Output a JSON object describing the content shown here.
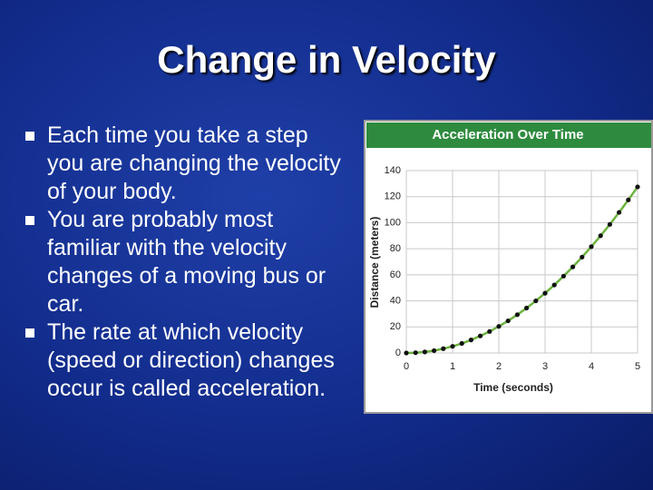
{
  "slide": {
    "title": "Change in Velocity",
    "bullets": [
      "Each time you take a step you are changing the velocity of your body.",
      "You are probably most familiar with the velocity changes of a moving bus or car.",
      "The rate at which velocity (speed or direction) changes occur is called acceleration."
    ]
  },
  "chart_data": {
    "type": "line",
    "title": "Acceleration Over Time",
    "x_label": "Time (seconds)",
    "y_label": "Distance (meters)",
    "x": [
      0,
      0.2,
      0.4,
      0.6,
      0.8,
      1,
      1.2,
      1.4,
      1.6,
      1.8,
      2,
      2.2,
      2.4,
      2.6,
      2.8,
      3,
      3.2,
      3.4,
      3.6,
      3.8,
      4,
      4.2,
      4.4,
      4.6,
      4.8,
      5
    ],
    "series": [
      {
        "color": "#6cb33f",
        "marker_color": "#111111",
        "values": [
          0,
          0.2,
          0.8,
          1.8,
          3.3,
          5.1,
          7.3,
          10,
          13.1,
          16.5,
          20.4,
          24.7,
          29.4,
          34.5,
          40,
          45.9,
          52.2,
          59,
          66.1,
          73.6,
          81.6,
          90,
          98.7,
          107.9,
          117.5,
          127.5
        ]
      }
    ],
    "xlim": [
      0,
      5
    ],
    "ylim": [
      0,
      140
    ],
    "xticks": [
      0,
      1,
      2,
      3,
      4,
      5
    ],
    "yticks": [
      0,
      20,
      40,
      60,
      80,
      100,
      120,
      140
    ],
    "grid": true,
    "header_color": "#2e8b3e"
  }
}
